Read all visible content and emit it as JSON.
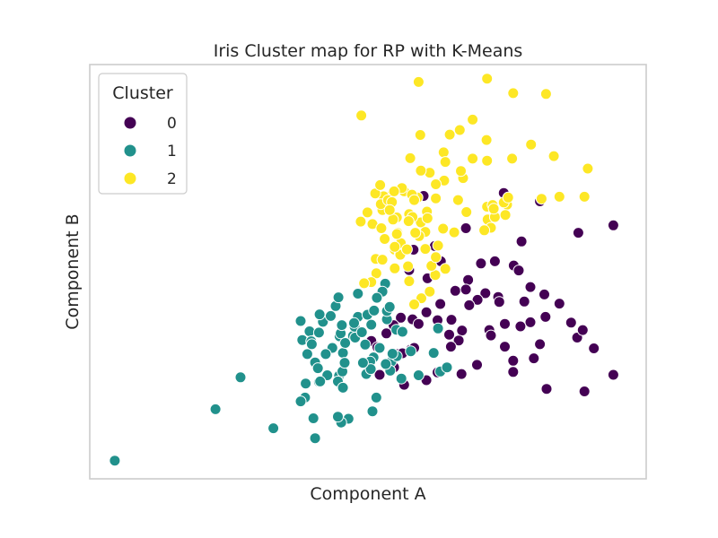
{
  "chart_data": {
    "type": "scatter",
    "title": "Iris Cluster map for RP with K-Means",
    "xlabel": "Component A",
    "ylabel": "Component B",
    "xlim": [
      0,
      100
    ],
    "ylim": [
      0,
      100
    ],
    "ticks_shown": false,
    "grid": false,
    "legend": {
      "title": "Cluster",
      "position": "top-left"
    },
    "series": [
      {
        "name": "0",
        "color": "#440154",
        "points": [
          [
            60,
            68.3
          ],
          [
            67.6,
            60.5
          ],
          [
            65.4,
            59.5
          ],
          [
            74.4,
            69
          ],
          [
            80.9,
            67
          ],
          [
            87.8,
            59.4
          ],
          [
            94.1,
            61.2
          ],
          [
            77.6,
            57.3
          ],
          [
            79.2,
            46.3
          ],
          [
            68,
            48
          ],
          [
            76.2,
            51.5
          ],
          [
            77.1,
            50.3
          ],
          [
            72.8,
            52.5
          ],
          [
            70.3,
            52
          ],
          [
            62,
            56.2
          ],
          [
            63.1,
            52.5
          ],
          [
            58.2,
            55.3
          ],
          [
            57.4,
            50.4
          ],
          [
            60.7,
            48.4
          ],
          [
            65.7,
            45.4
          ],
          [
            71.1,
            44.8
          ],
          [
            73.4,
            43.9
          ],
          [
            67.6,
            45.7
          ],
          [
            69.7,
            43.2
          ],
          [
            68.2,
            41.9
          ],
          [
            74.6,
            37.4
          ],
          [
            79.2,
            37.8
          ],
          [
            71.8,
            35.9
          ],
          [
            66.9,
            35.8
          ],
          [
            64.6,
            34.8
          ],
          [
            62.5,
            38.3
          ],
          [
            65,
            38.4
          ],
          [
            60.5,
            40.2
          ],
          [
            58,
            38.5
          ],
          [
            59.1,
            37.4
          ],
          [
            55.9,
            38.9
          ],
          [
            54.6,
            37.1
          ],
          [
            50.6,
            33.3
          ],
          [
            51.7,
            31.8
          ],
          [
            53.3,
            35.1
          ],
          [
            57.7,
            31.2
          ],
          [
            58.3,
            31.6
          ],
          [
            55.4,
            30.1
          ],
          [
            56.2,
            30.3
          ],
          [
            51,
            29.5
          ],
          [
            54.7,
            26.9
          ],
          [
            52.1,
            25.1
          ],
          [
            56.5,
            22.7
          ],
          [
            60.5,
            23.8
          ],
          [
            62.5,
            25.7
          ],
          [
            66.8,
            25.3
          ],
          [
            76.1,
            25.8
          ],
          [
            79.8,
            29.1
          ],
          [
            82.1,
            21.7
          ],
          [
            88.9,
            21.1
          ],
          [
            94.1,
            25.1
          ],
          [
            90.6,
            31.5
          ],
          [
            87.6,
            34.1
          ],
          [
            80.9,
            32.5
          ],
          [
            77.4,
            36.8
          ],
          [
            74.6,
            31.9
          ],
          [
            76.1,
            28.5
          ],
          [
            81.9,
            39.1
          ],
          [
            86.5,
            37.7
          ],
          [
            88.6,
            35.9
          ],
          [
            84.4,
            42.3
          ],
          [
            81.7,
            44.5
          ],
          [
            78.1,
            42.8
          ],
          [
            73.6,
            42.7
          ],
          [
            63,
            42.2
          ],
          [
            72.1,
            34.6
          ],
          [
            69.6,
            27.5
          ],
          [
            66.3,
            33.4
          ],
          [
            64.9,
            31.9
          ]
        ]
      },
      {
        "name": "1",
        "color": "#21918c",
        "points": [
          [
            4.5,
            4.4
          ],
          [
            22.6,
            16.8
          ],
          [
            27.1,
            24.5
          ],
          [
            38.7,
            19.6
          ],
          [
            38.8,
            23
          ],
          [
            42.7,
            25
          ],
          [
            41.2,
            23.4
          ],
          [
            57.7,
            30.8
          ],
          [
            54.2,
            28.3
          ],
          [
            55.2,
            29.6
          ],
          [
            51.5,
            19.6
          ],
          [
            50.8,
            16.3
          ],
          [
            46.5,
            14.5
          ],
          [
            40.2,
            14.6
          ],
          [
            37.9,
            18.7
          ],
          [
            33,
            12.2
          ],
          [
            40.5,
            9.8
          ],
          [
            45.2,
            13.6
          ],
          [
            51,
            29.3
          ],
          [
            54,
            26.1
          ],
          [
            50.4,
            28.3
          ],
          [
            44.8,
            24.9
          ],
          [
            44.6,
            23.5
          ],
          [
            45.4,
            25.9
          ],
          [
            45.5,
            22
          ],
          [
            44.6,
            15
          ],
          [
            49.7,
            25.3
          ],
          [
            56,
            24.2
          ],
          [
            41.9,
            37.9
          ],
          [
            49.5,
            32.4
          ],
          [
            47.3,
            34.5
          ],
          [
            50.5,
            26.5
          ],
          [
            49.1,
            28
          ],
          [
            41.4,
            23.5
          ],
          [
            39.1,
            30.1
          ],
          [
            37.9,
            38.1
          ],
          [
            39.5,
            35.6
          ],
          [
            38.2,
            33.5
          ],
          [
            41.2,
            35.3
          ],
          [
            40.5,
            28.1
          ],
          [
            41,
            26.7
          ],
          [
            44.2,
            41.7
          ],
          [
            45.5,
            30.4
          ],
          [
            45.8,
            28
          ],
          [
            47.6,
            36.7
          ],
          [
            48.2,
            39.1
          ],
          [
            48.2,
            44.7
          ],
          [
            52.1,
            31.6
          ],
          [
            53.2,
            27.7
          ],
          [
            54.4,
            30.2
          ],
          [
            59.1,
            25
          ],
          [
            63,
            25.9
          ],
          [
            64.2,
            26.9
          ],
          [
            61.8,
            30.4
          ],
          [
            55.1,
            36
          ],
          [
            53.4,
            38.5
          ],
          [
            53.4,
            40.5
          ],
          [
            53.1,
            47.1
          ],
          [
            52.6,
            45.2
          ],
          [
            53.9,
            41.5
          ],
          [
            51.6,
            43.7
          ],
          [
            47.5,
            37.6
          ],
          [
            44.7,
            43.8
          ],
          [
            43.3,
            39.3
          ],
          [
            41.3,
            39.7
          ],
          [
            39.8,
            33.2
          ],
          [
            44.9,
            34.4
          ],
          [
            45.1,
            35.1
          ],
          [
            45.3,
            37.1
          ],
          [
            45.9,
            32.8
          ],
          [
            47.7,
            34.1
          ],
          [
            43.6,
            31.6
          ],
          [
            42.4,
            30.1
          ],
          [
            39.9,
            32.5
          ],
          [
            48.9,
            35.4
          ],
          [
            49.9,
            39.6
          ],
          [
            50.6,
            37.2
          ],
          [
            51.1,
            40.6
          ],
          [
            56.2,
            35.5
          ],
          [
            62.6,
            36.3
          ]
        ]
      },
      {
        "name": "2",
        "color": "#fde725",
        "points": [
          [
            48.8,
            87.7
          ],
          [
            59.1,
            95.8
          ],
          [
            71.4,
            96.6
          ],
          [
            76.1,
            93.1
          ],
          [
            82,
            92.9
          ],
          [
            71.3,
            81.8
          ],
          [
            66.5,
            84.2
          ],
          [
            68.8,
            86.7
          ],
          [
            64.7,
            83.1
          ],
          [
            59.4,
            83
          ],
          [
            57.6,
            77.4
          ],
          [
            63.6,
            78.8
          ],
          [
            68.8,
            77.3
          ],
          [
            71.4,
            76.8
          ],
          [
            75.9,
            77.3
          ],
          [
            79.3,
            80.7
          ],
          [
            83.4,
            77.9
          ],
          [
            89.5,
            74.9
          ],
          [
            67.1,
            72.6
          ],
          [
            66.7,
            74.3
          ],
          [
            63.7,
            72
          ],
          [
            62.2,
            71.1
          ],
          [
            61.1,
            73.9
          ],
          [
            63.9,
            76.5
          ],
          [
            59.5,
            74.4
          ],
          [
            58.9,
            67.9
          ],
          [
            56.5,
            69.4
          ],
          [
            53.6,
            68.1
          ],
          [
            52.8,
            68.2
          ],
          [
            51.3,
            68.9
          ],
          [
            52.2,
            70.9
          ],
          [
            56.1,
            70.2
          ],
          [
            57.9,
            68.6
          ],
          [
            52.6,
            64.9
          ],
          [
            55.2,
            63.1
          ],
          [
            50.8,
            61.5
          ],
          [
            59.5,
            61.9
          ],
          [
            55.3,
            59.4
          ],
          [
            54.5,
            62.6
          ],
          [
            52.4,
            60.5
          ],
          [
            48.7,
            62.1
          ],
          [
            49.9,
            64.3
          ],
          [
            52.3,
            66.3
          ],
          [
            53.6,
            67.3
          ],
          [
            54.3,
            66.8
          ],
          [
            53.9,
            64.9
          ],
          [
            57.4,
            63.9
          ],
          [
            58,
            63.2
          ],
          [
            57.3,
            62.2
          ],
          [
            67.7,
            64.4
          ],
          [
            71.4,
            65.7
          ],
          [
            72.4,
            66.1
          ],
          [
            75,
            66.2
          ],
          [
            71.5,
            62.6
          ],
          [
            72.8,
            63.2
          ],
          [
            74.4,
            66.7
          ],
          [
            72.6,
            65.2
          ],
          [
            74.7,
            63.7
          ],
          [
            81.2,
            67.6
          ],
          [
            84.4,
            68.1
          ],
          [
            88.9,
            68.1
          ],
          [
            75.2,
            67.9
          ],
          [
            72.1,
            60.6
          ],
          [
            70.9,
            60
          ],
          [
            65.5,
            59.5
          ],
          [
            62.6,
            56.3
          ],
          [
            63.5,
            60.4
          ],
          [
            60.3,
            59.6
          ],
          [
            59.2,
            58.6
          ],
          [
            53,
            57.9
          ],
          [
            54.8,
            55.3
          ],
          [
            55.7,
            54.2
          ],
          [
            55.9,
            56.9
          ],
          [
            51.4,
            53.1
          ],
          [
            52.6,
            52.9
          ],
          [
            55.8,
            54.1
          ],
          [
            54.8,
            50.8
          ],
          [
            57.4,
            47.7
          ],
          [
            59.6,
            43.6
          ],
          [
            61.1,
            45.2
          ],
          [
            58.3,
            42.1
          ],
          [
            62.1,
            49.2
          ],
          [
            63.9,
            50.7
          ],
          [
            61.4,
            51.4
          ],
          [
            62.2,
            53.5
          ],
          [
            60.3,
            55.5
          ],
          [
            57.2,
            51.3
          ],
          [
            51.5,
            49.6
          ],
          [
            50.6,
            47.5
          ],
          [
            49.3,
            47.2
          ],
          [
            58.3,
            67.3
          ],
          [
            62.2,
            67.7
          ],
          [
            66.2,
            67.3
          ],
          [
            54.7,
            69.4
          ],
          [
            60.6,
            64.5
          ],
          [
            60.7,
            62.9
          ],
          [
            58.5,
            59.4
          ],
          [
            55.2,
            59.1
          ],
          [
            54.8,
            56
          ],
          [
            57,
            55.4
          ]
        ]
      }
    ]
  }
}
